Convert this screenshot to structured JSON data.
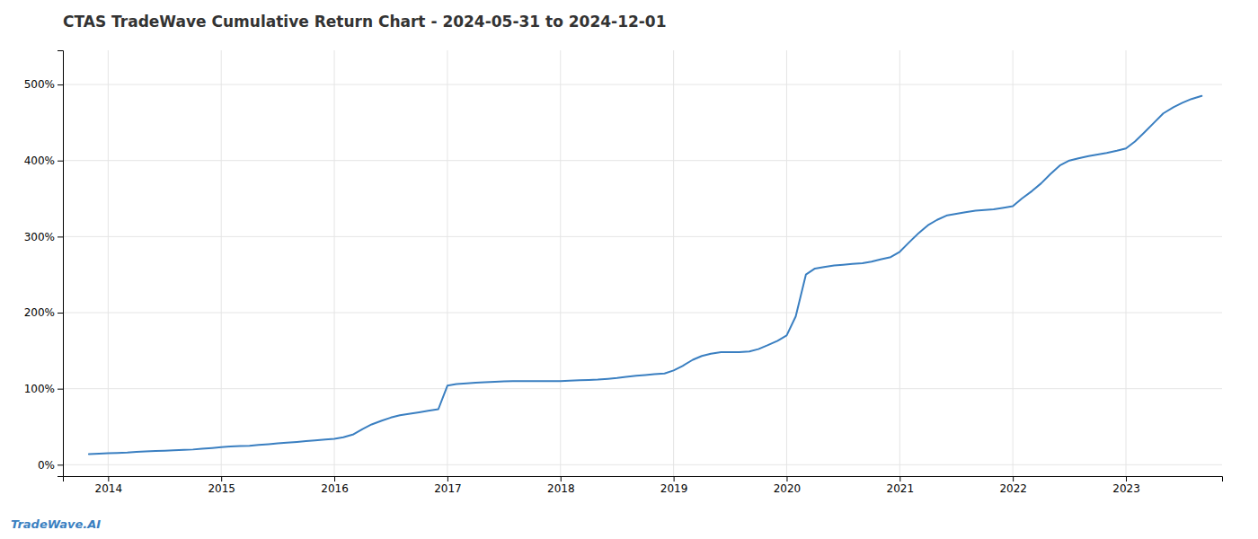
{
  "chart_data": {
    "type": "line",
    "title": "CTAS TradeWave Cumulative Return Chart - 2024-05-31 to 2024-12-01",
    "annotations": [
      "TradeWave.AI"
    ],
    "color": "#3a7fc1",
    "grid": true,
    "x": [
      2013.83,
      2013.92,
      2014.0,
      2014.08,
      2014.17,
      2014.25,
      2014.33,
      2014.42,
      2014.5,
      2014.58,
      2014.67,
      2014.75,
      2014.83,
      2014.92,
      2015.0,
      2015.08,
      2015.17,
      2015.25,
      2015.33,
      2015.42,
      2015.5,
      2015.58,
      2015.67,
      2015.75,
      2015.83,
      2015.92,
      2016.0,
      2016.08,
      2016.17,
      2016.25,
      2016.33,
      2016.42,
      2016.5,
      2016.58,
      2016.67,
      2016.75,
      2016.83,
      2016.92,
      2017.0,
      2017.08,
      2017.17,
      2017.25,
      2017.33,
      2017.42,
      2017.5,
      2017.58,
      2017.67,
      2017.75,
      2017.83,
      2017.92,
      2018.0,
      2018.08,
      2018.17,
      2018.25,
      2018.33,
      2018.42,
      2018.5,
      2018.58,
      2018.67,
      2018.75,
      2018.83,
      2018.92,
      2019.0,
      2019.08,
      2019.17,
      2019.25,
      2019.33,
      2019.42,
      2019.5,
      2019.58,
      2019.67,
      2019.75,
      2019.83,
      2019.92,
      2020.0,
      2020.08,
      2020.17,
      2020.25,
      2020.33,
      2020.42,
      2020.5,
      2020.58,
      2020.67,
      2020.75,
      2020.83,
      2020.92,
      2021.0,
      2021.08,
      2021.17,
      2021.25,
      2021.33,
      2021.42,
      2021.5,
      2021.58,
      2021.67,
      2021.75,
      2021.83,
      2021.92,
      2022.0,
      2022.08,
      2022.17,
      2022.25,
      2022.33,
      2022.42,
      2022.5,
      2022.58,
      2022.67,
      2022.75,
      2022.83,
      2022.92,
      2023.0,
      2023.08,
      2023.17,
      2023.25,
      2023.33,
      2023.42,
      2023.5,
      2023.58,
      2023.67
    ],
    "values": [
      14,
      14.5,
      15,
      15.5,
      16,
      17,
      17.5,
      18,
      18.5,
      19,
      19.5,
      20,
      21,
      22,
      23,
      24,
      24.5,
      25,
      26,
      27,
      28,
      29,
      30,
      31,
      32,
      33,
      34,
      36,
      40,
      47,
      53,
      58,
      62,
      65,
      67,
      69,
      71,
      73,
      104,
      106,
      107,
      108,
      108.5,
      109,
      109.5,
      110,
      110,
      110,
      110,
      110,
      110,
      110.5,
      111,
      111.5,
      112,
      113,
      114,
      115.5,
      117,
      118,
      119,
      120,
      124,
      130,
      138,
      143,
      146,
      148,
      148,
      148,
      149,
      152,
      157,
      163,
      170,
      195,
      250,
      258,
      260,
      262,
      263,
      264,
      265,
      267,
      270,
      273,
      280,
      292,
      305,
      315,
      322,
      328,
      330,
      332,
      334,
      335,
      336,
      338,
      340,
      350,
      360,
      370,
      382,
      394,
      400,
      403,
      406,
      408,
      410,
      413,
      416,
      425,
      438,
      450,
      462,
      470,
      476,
      481,
      485
    ],
    "xlim": [
      2013.6,
      2023.85
    ],
    "xticks": [
      2014,
      2015,
      2016,
      2017,
      2018,
      2019,
      2020,
      2021,
      2022,
      2023
    ],
    "ylim": [
      -15,
      545
    ],
    "yticks": [
      {
        "value": 0,
        "label": "0%"
      },
      {
        "value": 100,
        "label": "100%"
      },
      {
        "value": 200,
        "label": "200%"
      },
      {
        "value": 300,
        "label": "300%"
      },
      {
        "value": 400,
        "label": "400%"
      },
      {
        "value": 500,
        "label": "500%"
      }
    ]
  }
}
